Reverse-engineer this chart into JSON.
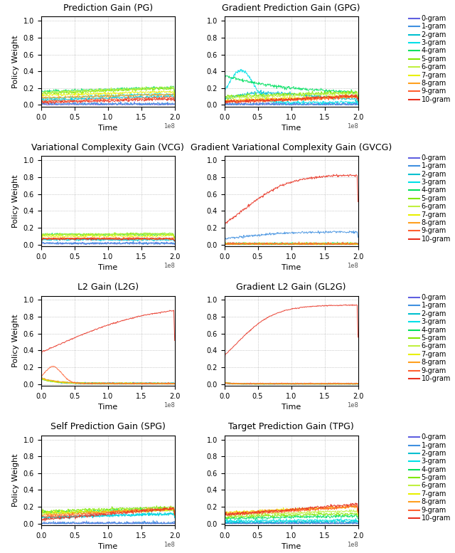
{
  "titles": [
    "Prediction Gain (PG)",
    "Gradient Prediction Gain (GPG)",
    "Variational Complexity Gain (VCG)",
    "Gradient Variational Complexity Gain (GVCG)",
    "L2 Gain (L2G)",
    "Gradient L2 Gain (GL2G)",
    "Self Prediction Gain (SPG)",
    "Target Prediction Gain (TPG)"
  ],
  "ylabel": "Policy Weight",
  "xlabel": "Time",
  "xlim": [
    0,
    200000000
  ],
  "ylim": [
    0.0,
    1.0
  ],
  "xticks": [
    0,
    50000000,
    100000000,
    150000000,
    200000000
  ],
  "xtick_labels": [
    "0.0",
    "0.5",
    "1.0",
    "1.5",
    "2.0"
  ],
  "yticks": [
    0.0,
    0.2,
    0.4,
    0.6,
    0.8,
    1.0
  ],
  "gram_labels": [
    "0-gram",
    "1-gram",
    "2-gram",
    "3-gram",
    "4-gram",
    "5-gram",
    "6-gram",
    "7-gram",
    "8-gram",
    "9-gram",
    "10-gram"
  ],
  "gram_colors": [
    "#6060e0",
    "#4090e0",
    "#00c0d0",
    "#00e0e8",
    "#00e060",
    "#80e800",
    "#c0f040",
    "#e8f000",
    "#ffa020",
    "#ff6030",
    "#e83020"
  ],
  "n_grams": 11,
  "n_steps": 300,
  "figsize": [
    6.4,
    7.77
  ],
  "dpi": 100,
  "title_fontsize": 9,
  "tick_fontsize": 7,
  "label_fontsize": 8,
  "legend_fontsize": 7
}
